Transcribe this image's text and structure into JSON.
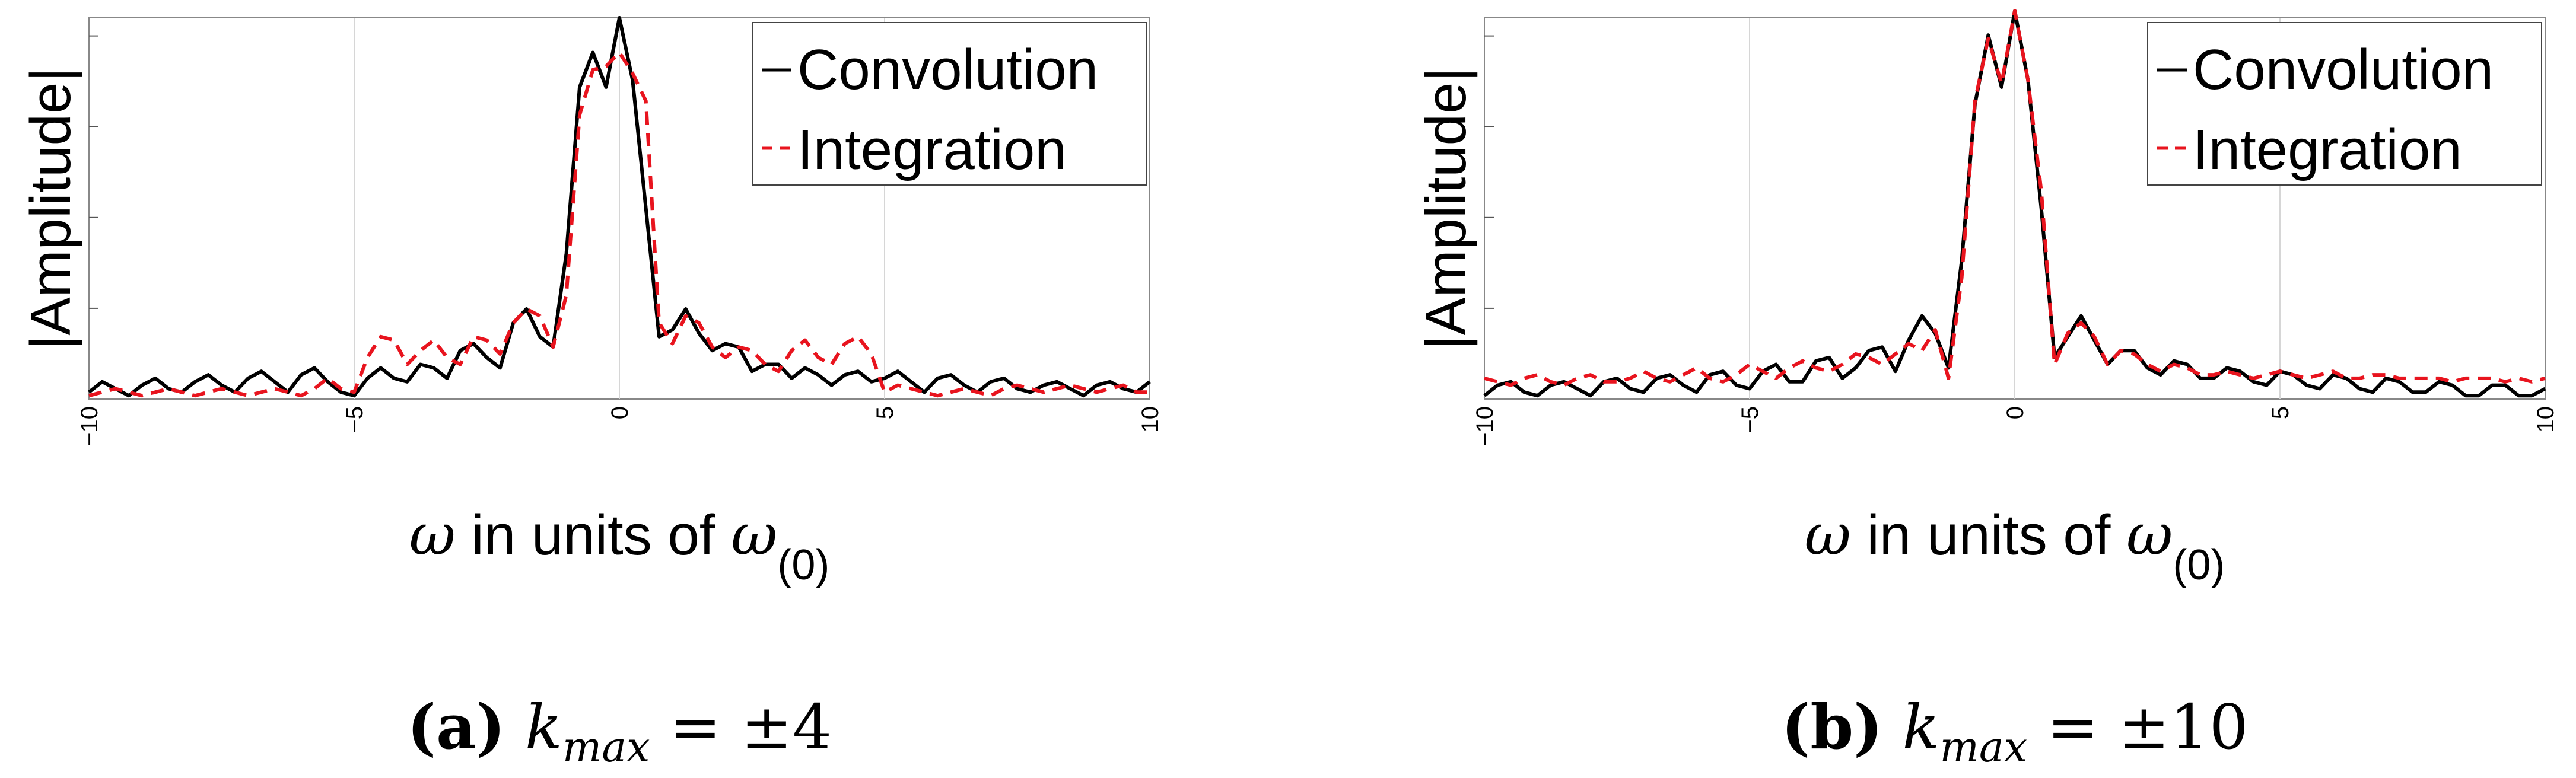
{
  "chart_data": [
    {
      "type": "line",
      "ylabel": "|Amplitude|",
      "xlabel": {
        "symbol": "ω",
        "text": " in units of ",
        "symbol2": "ω",
        "subscript": "(0)"
      },
      "xlim": [
        -10,
        10
      ],
      "ylim": [
        0,
        1.1
      ],
      "xticks": [
        "−10",
        "−5",
        "0",
        "5",
        "10"
      ],
      "grid": "vertical",
      "legend_position": "top-right",
      "series": [
        {
          "name": "Convolution",
          "color": "#000000",
          "dash": "solid",
          "x": [
            -10,
            -9.75,
            -9.5,
            -9.25,
            -9,
            -8.75,
            -8.5,
            -8.25,
            -8,
            -7.75,
            -7.5,
            -7.25,
            -7,
            -6.75,
            -6.5,
            -6.25,
            -6,
            -5.75,
            -5.5,
            -5.25,
            -5,
            -4.75,
            -4.5,
            -4.25,
            -4,
            -3.75,
            -3.5,
            -3.25,
            -3,
            -2.75,
            -2.5,
            -2.25,
            -2,
            -1.75,
            -1.5,
            -1.25,
            -1,
            -0.75,
            -0.5,
            -0.25,
            0,
            0.25,
            0.5,
            0.75,
            1,
            1.25,
            1.5,
            1.75,
            2,
            2.25,
            2.5,
            2.75,
            3,
            3.25,
            3.5,
            3.75,
            4,
            4.25,
            4.5,
            4.75,
            5,
            5.25,
            5.5,
            5.75,
            6,
            6.25,
            6.5,
            6.75,
            7,
            7.25,
            7.5,
            7.75,
            8,
            8.25,
            8.5,
            8.75,
            9,
            9.25,
            9.5,
            9.75,
            10
          ],
          "y": [
            0.02,
            0.05,
            0.03,
            0.01,
            0.04,
            0.06,
            0.03,
            0.02,
            0.05,
            0.07,
            0.04,
            0.02,
            0.06,
            0.08,
            0.05,
            0.02,
            0.07,
            0.09,
            0.05,
            0.02,
            0.01,
            0.06,
            0.09,
            0.06,
            0.05,
            0.1,
            0.09,
            0.06,
            0.14,
            0.16,
            0.12,
            0.09,
            0.22,
            0.26,
            0.18,
            0.15,
            0.42,
            0.9,
            1.0,
            0.9,
            1.1,
            0.92,
            0.55,
            0.18,
            0.2,
            0.26,
            0.19,
            0.14,
            0.16,
            0.15,
            0.08,
            0.1,
            0.1,
            0.06,
            0.09,
            0.07,
            0.04,
            0.07,
            0.08,
            0.05,
            0.06,
            0.08,
            0.05,
            0.02,
            0.06,
            0.07,
            0.04,
            0.02,
            0.05,
            0.06,
            0.03,
            0.02,
            0.04,
            0.05,
            0.03,
            0.01,
            0.04,
            0.05,
            0.03,
            0.02,
            0.05
          ]
        },
        {
          "name": "Integration",
          "color": "#e8141e",
          "dash": "dashed",
          "x": [
            -10,
            -9.75,
            -9.5,
            -9.25,
            -9,
            -8.75,
            -8.5,
            -8.25,
            -8,
            -7.75,
            -7.5,
            -7.25,
            -7,
            -6.75,
            -6.5,
            -6.25,
            -6,
            -5.75,
            -5.5,
            -5.25,
            -5,
            -4.75,
            -4.5,
            -4.25,
            -4,
            -3.75,
            -3.5,
            -3.25,
            -3,
            -2.75,
            -2.5,
            -2.25,
            -2,
            -1.75,
            -1.5,
            -1.25,
            -1,
            -0.75,
            -0.5,
            -0.25,
            0,
            0.25,
            0.5,
            0.75,
            1,
            1.25,
            1.5,
            1.75,
            2,
            2.25,
            2.5,
            2.75,
            3,
            3.25,
            3.5,
            3.75,
            4,
            4.25,
            4.5,
            4.75,
            5,
            5.25,
            5.5,
            5.75,
            6,
            6.25,
            6.5,
            6.75,
            7,
            7.25,
            7.5,
            7.75,
            8,
            8.25,
            8.5,
            8.75,
            9,
            9.25,
            9.5,
            9.75,
            10
          ],
          "y": [
            0.01,
            0.02,
            0.03,
            0.02,
            0.01,
            0.02,
            0.03,
            0.02,
            0.01,
            0.02,
            0.03,
            0.02,
            0.01,
            0.02,
            0.03,
            0.02,
            0.01,
            0.03,
            0.06,
            0.03,
            0.02,
            0.12,
            0.18,
            0.17,
            0.1,
            0.14,
            0.17,
            0.12,
            0.1,
            0.18,
            0.17,
            0.13,
            0.22,
            0.26,
            0.24,
            0.15,
            0.3,
            0.82,
            0.95,
            0.96,
            1.0,
            0.94,
            0.86,
            0.22,
            0.16,
            0.24,
            0.22,
            0.15,
            0.12,
            0.15,
            0.14,
            0.1,
            0.08,
            0.14,
            0.17,
            0.12,
            0.1,
            0.16,
            0.18,
            0.13,
            0.02,
            0.04,
            0.03,
            0.02,
            0.01,
            0.02,
            0.03,
            0.02,
            0.01,
            0.03,
            0.04,
            0.03,
            0.02,
            0.03,
            0.04,
            0.03,
            0.02,
            0.03,
            0.04,
            0.02,
            0.02
          ]
        }
      ],
      "caption": {
        "label": "(a)",
        "var": "k",
        "sub": "max",
        "rest": " = ±4"
      }
    },
    {
      "type": "line",
      "ylabel": "|Amplitude|",
      "xlabel": {
        "symbol": "ω",
        "text": " in units of ",
        "symbol2": "ω",
        "subscript": "(0)"
      },
      "xlim": [
        -10,
        10
      ],
      "ylim": [
        0,
        1.1
      ],
      "xticks": [
        "−10",
        "−5",
        "0",
        "5",
        "10"
      ],
      "grid": "vertical",
      "legend_position": "top-right",
      "series": [
        {
          "name": "Convolution",
          "color": "#000000",
          "dash": "solid",
          "x": [
            -10,
            -9.75,
            -9.5,
            -9.25,
            -9,
            -8.75,
            -8.5,
            -8.25,
            -8,
            -7.75,
            -7.5,
            -7.25,
            -7,
            -6.75,
            -6.5,
            -6.25,
            -6,
            -5.75,
            -5.5,
            -5.25,
            -5,
            -4.75,
            -4.5,
            -4.25,
            -4,
            -3.75,
            -3.5,
            -3.25,
            -3,
            -2.75,
            -2.5,
            -2.25,
            -2,
            -1.75,
            -1.5,
            -1.25,
            -1,
            -0.75,
            -0.5,
            -0.25,
            0,
            0.25,
            0.5,
            0.75,
            1,
            1.25,
            1.5,
            1.75,
            2,
            2.25,
            2.5,
            2.75,
            3,
            3.25,
            3.5,
            3.75,
            4,
            4.25,
            4.5,
            4.75,
            5,
            5.25,
            5.5,
            5.75,
            6,
            6.25,
            6.5,
            6.75,
            7,
            7.25,
            7.5,
            7.75,
            8,
            8.25,
            8.5,
            8.75,
            9,
            9.25,
            9.5,
            9.75,
            10
          ],
          "y": [
            0.01,
            0.04,
            0.05,
            0.02,
            0.01,
            0.04,
            0.05,
            0.03,
            0.01,
            0.05,
            0.06,
            0.03,
            0.02,
            0.06,
            0.07,
            0.04,
            0.02,
            0.07,
            0.08,
            0.04,
            0.03,
            0.08,
            0.1,
            0.05,
            0.05,
            0.11,
            0.12,
            0.06,
            0.09,
            0.14,
            0.15,
            0.08,
            0.17,
            0.24,
            0.19,
            0.09,
            0.4,
            0.85,
            1.05,
            0.9,
            1.12,
            0.92,
            0.55,
            0.12,
            0.18,
            0.24,
            0.17,
            0.1,
            0.14,
            0.14,
            0.09,
            0.07,
            0.11,
            0.1,
            0.06,
            0.06,
            0.09,
            0.08,
            0.05,
            0.04,
            0.08,
            0.07,
            0.04,
            0.03,
            0.07,
            0.06,
            0.03,
            0.02,
            0.06,
            0.05,
            0.02,
            0.02,
            0.05,
            0.04,
            0.01,
            0.01,
            0.04,
            0.04,
            0.01,
            0.01,
            0.03
          ]
        },
        {
          "name": "Integration",
          "color": "#e8141e",
          "dash": "dashed",
          "x": [
            -10,
            -9.75,
            -9.5,
            -9.25,
            -9,
            -8.75,
            -8.5,
            -8.25,
            -8,
            -7.75,
            -7.5,
            -7.25,
            -7,
            -6.75,
            -6.5,
            -6.25,
            -6,
            -5.75,
            -5.5,
            -5.25,
            -5,
            -4.75,
            -4.5,
            -4.25,
            -4,
            -3.75,
            -3.5,
            -3.25,
            -3,
            -2.75,
            -2.5,
            -2.25,
            -2,
            -1.75,
            -1.5,
            -1.25,
            -1,
            -0.75,
            -0.5,
            -0.25,
            0,
            0.25,
            0.5,
            0.75,
            1,
            1.25,
            1.5,
            1.75,
            2,
            2.25,
            2.5,
            2.75,
            3,
            3.25,
            3.5,
            3.75,
            4,
            4.25,
            4.5,
            4.75,
            5,
            5.25,
            5.5,
            5.75,
            6,
            6.25,
            6.5,
            6.75,
            7,
            7.25,
            7.5,
            7.75,
            8,
            8.25,
            8.5,
            8.75,
            9,
            9.25,
            9.5,
            9.75,
            10
          ],
          "y": [
            0.06,
            0.05,
            0.04,
            0.06,
            0.07,
            0.05,
            0.04,
            0.06,
            0.07,
            0.05,
            0.05,
            0.06,
            0.08,
            0.06,
            0.05,
            0.07,
            0.09,
            0.06,
            0.05,
            0.07,
            0.1,
            0.08,
            0.06,
            0.09,
            0.11,
            0.09,
            0.08,
            0.1,
            0.13,
            0.12,
            0.1,
            0.13,
            0.16,
            0.14,
            0.2,
            0.06,
            0.35,
            0.86,
            1.04,
            0.91,
            1.12,
            0.92,
            0.6,
            0.1,
            0.19,
            0.22,
            0.18,
            0.1,
            0.14,
            0.13,
            0.1,
            0.08,
            0.1,
            0.09,
            0.07,
            0.07,
            0.08,
            0.07,
            0.06,
            0.07,
            0.08,
            0.07,
            0.06,
            0.07,
            0.08,
            0.06,
            0.06,
            0.07,
            0.07,
            0.06,
            0.06,
            0.06,
            0.06,
            0.05,
            0.06,
            0.06,
            0.06,
            0.05,
            0.06,
            0.05,
            0.06
          ]
        }
      ],
      "caption": {
        "label": "(b)",
        "var": "k",
        "sub": "max",
        "rest": " = ±10"
      }
    }
  ]
}
